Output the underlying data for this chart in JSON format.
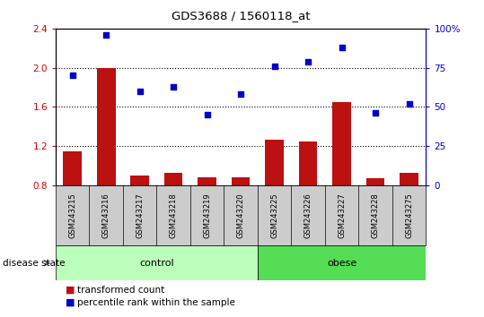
{
  "title": "GDS3688 / 1560118_at",
  "samples": [
    "GSM243215",
    "GSM243216",
    "GSM243217",
    "GSM243218",
    "GSM243219",
    "GSM243220",
    "GSM243225",
    "GSM243226",
    "GSM243227",
    "GSM243228",
    "GSM243275"
  ],
  "transformed_count": [
    1.15,
    2.0,
    0.9,
    0.93,
    0.88,
    0.88,
    1.27,
    1.25,
    1.65,
    0.87,
    0.93
  ],
  "percentile_rank": [
    70,
    96,
    60,
    63,
    45,
    58,
    76,
    79,
    88,
    46,
    52
  ],
  "bar_color": "#bb1111",
  "dot_color": "#0000cc",
  "ylim_left": [
    0.8,
    2.4
  ],
  "ylim_right": [
    0,
    100
  ],
  "yticks_left": [
    0.8,
    1.2,
    1.6,
    2.0,
    2.4
  ],
  "ytick_labels_right": [
    "0",
    "25",
    "50",
    "75",
    "100%"
  ],
  "yticks_right": [
    0,
    25,
    50,
    75,
    100
  ],
  "ctrl_count": 6,
  "obese_count": 5,
  "group_label_control": "control",
  "group_label_obese": "obese",
  "ctrl_color": "#bbffbb",
  "obese_color": "#55dd55",
  "tick_bg_color": "#cccccc",
  "left_tick_color": "#cc0000",
  "right_tick_color": "#0000cc",
  "legend_bar_label": "transformed count",
  "legend_dot_label": "percentile rank within the sample",
  "disease_state_label": "disease state",
  "grid_values": [
    1.2,
    1.6,
    2.0
  ]
}
